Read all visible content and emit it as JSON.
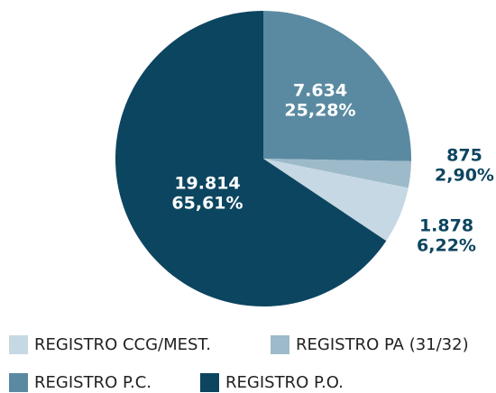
{
  "chart_data": {
    "type": "pie",
    "categories": [
      "REGISTRO P.C.",
      "REGISTRO PA (31/32)",
      "REGISTRO CCG/MEST.",
      "REGISTRO P.O."
    ],
    "values": [
      7634,
      875,
      1878,
      19814
    ],
    "value_labels": [
      "7.634",
      "875",
      "1.878",
      "19.814"
    ],
    "percents": [
      25.28,
      2.9,
      6.22,
      65.61
    ],
    "percent_labels": [
      "25,28%",
      "2,90%",
      "6,22%",
      "65,61%"
    ],
    "colors": [
      "#5a8aa1",
      "#9dbaca",
      "#c6d8e3",
      "#0c4560"
    ]
  }
}
